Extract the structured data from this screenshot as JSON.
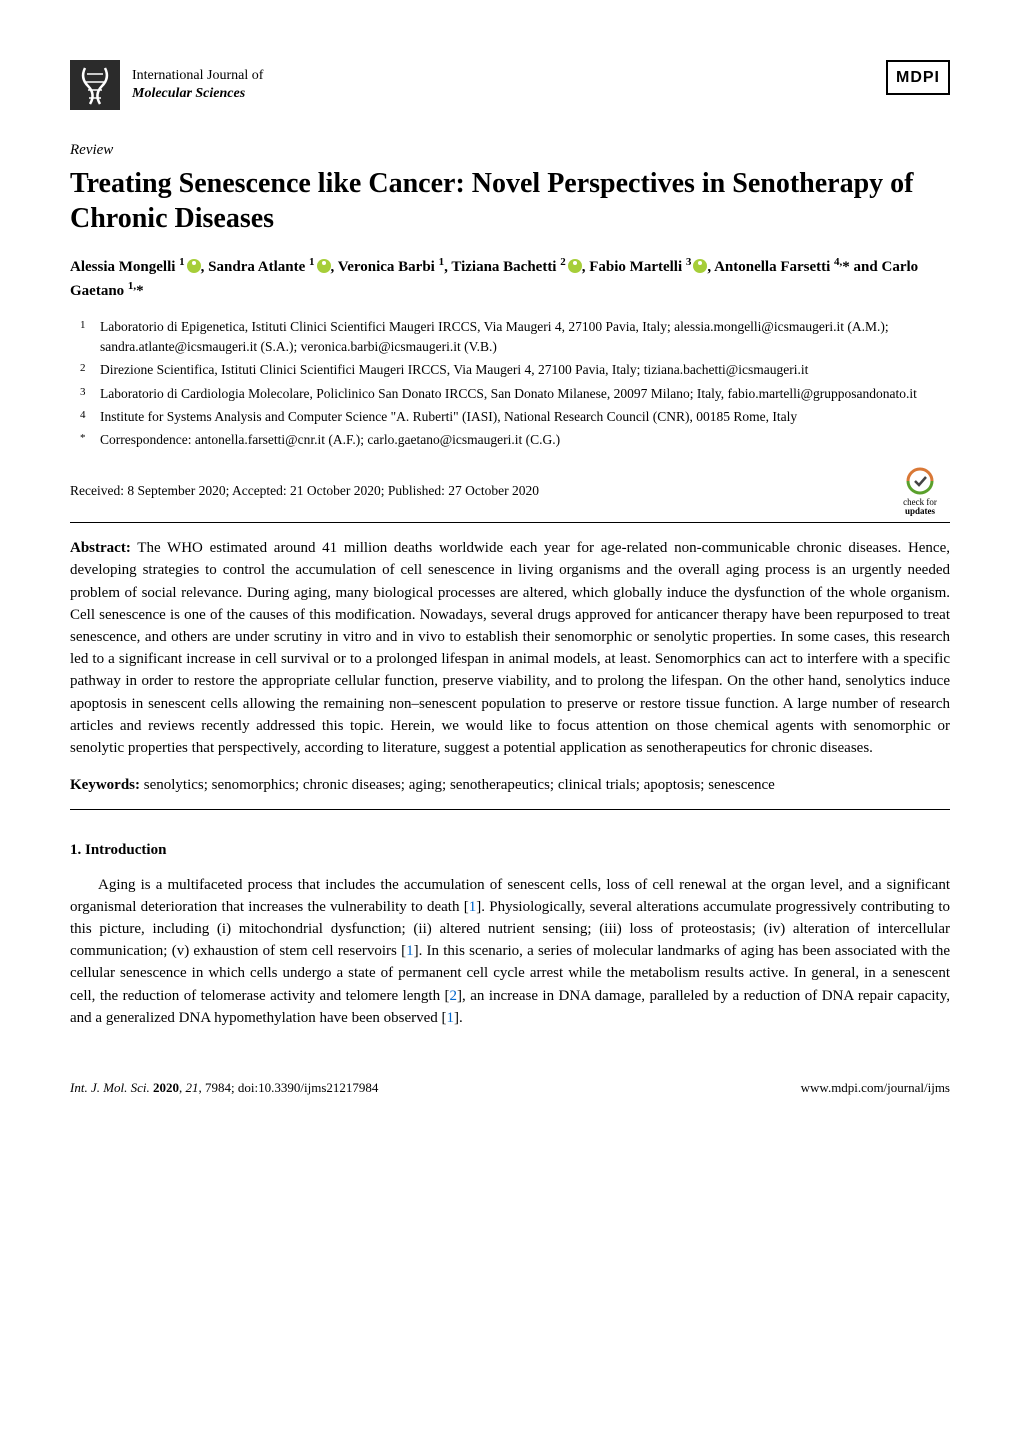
{
  "journal": {
    "line1": "International Journal of",
    "line2": "Molecular Sciences"
  },
  "publisher": "MDPI",
  "article_type": "Review",
  "title": "Treating Senescence like Cancer: Novel Perspectives in Senotherapy of Chronic Diseases",
  "authors_html": "Alessia Mongelli <sup>1</sup><span class=\"orcid\" data-name=\"orcid-icon\" data-interactable=\"false\"></span>, Sandra Atlante <sup>1</sup><span class=\"orcid\" data-name=\"orcid-icon\" data-interactable=\"false\"></span>, Veronica Barbi <sup>1</sup>, Tiziana Bachetti <sup>2</sup><span class=\"orcid\" data-name=\"orcid-icon\" data-interactable=\"false\"></span>, Fabio Martelli <sup>3</sup><span class=\"orcid\" data-name=\"orcid-icon\" data-interactable=\"false\"></span>, Antonella Farsetti <sup>4,</sup>* and Carlo Gaetano <sup>1,</sup>*",
  "affiliations": [
    {
      "num": "1",
      "text": "Laboratorio di Epigenetica, Istituti Clinici Scientifici Maugeri IRCCS, Via Maugeri 4, 27100 Pavia, Italy; alessia.mongelli@icsmaugeri.it (A.M.); sandra.atlante@icsmaugeri.it (S.A.); veronica.barbi@icsmaugeri.it (V.B.)"
    },
    {
      "num": "2",
      "text": "Direzione Scientifica, Istituti Clinici Scientifici Maugeri IRCCS, Via Maugeri 4, 27100 Pavia, Italy; tiziana.bachetti@icsmaugeri.it"
    },
    {
      "num": "3",
      "text": "Laboratorio di Cardiologia Molecolare, Policlinico San Donato IRCCS, San Donato Milanese, 20097 Milano; Italy, fabio.martelli@grupposandonato.it"
    },
    {
      "num": "4",
      "text": "Institute for Systems Analysis and Computer Science \"A. Ruberti\" (IASI), National Research Council (CNR), 00185 Rome, Italy"
    },
    {
      "num": "*",
      "text": "Correspondence: antonella.farsetti@cnr.it (A.F.); carlo.gaetano@icsmaugeri.it (C.G.)"
    }
  ],
  "dates": "Received: 8 September 2020; Accepted: 21 October 2020; Published: 27 October 2020",
  "updates_badge": {
    "line1": "check for",
    "line2": "updates"
  },
  "abstract_label": "Abstract:",
  "abstract": " The WHO estimated around 41 million deaths worldwide each year for age-related non-communicable chronic diseases. Hence, developing strategies to control the accumulation of cell senescence in living organisms and the overall aging process is an urgently needed problem of social relevance. During aging, many biological processes are altered, which globally induce the dysfunction of the whole organism. Cell senescence is one of the causes of this modification. Nowadays, several drugs approved for anticancer therapy have been repurposed to treat senescence, and others are under scrutiny in vitro and in vivo to establish their senomorphic or senolytic properties. In some cases, this research led to a significant increase in cell survival or to a prolonged lifespan in animal models, at least. Senomorphics can act to interfere with a specific pathway in order to restore the appropriate cellular function, preserve viability, and to prolong the lifespan. On the other hand, senolytics induce apoptosis in senescent cells allowing the remaining non–senescent population to preserve or restore tissue function. A large number of research articles and reviews recently addressed this topic. Herein, we would like to focus attention on those chemical agents with senomorphic or senolytic properties that perspectively, according to literature, suggest a potential application as senotherapeutics for chronic diseases.",
  "keywords_label": "Keywords:",
  "keywords": " senolytics; senomorphics; chronic diseases; aging; senotherapeutics; clinical trials; apoptosis; senescence",
  "section1_heading": "1. Introduction",
  "intro_paragraph_html": "Aging is a multifaceted process that includes the accumulation of senescent cells, loss of cell renewal at the organ level, and a significant organismal deterioration that increases the vulnerability to death [<span class=\"ref-link\" data-name=\"ref-link\" data-interactable=\"true\">1</span>]. Physiologically, several alterations accumulate progressively contributing to this picture, including (i) mitochondrial dysfunction; (ii) altered nutrient sensing; (iii) loss of proteostasis; (iv) alteration of intercellular communication; (v) exhaustion of stem cell reservoirs [<span class=\"ref-link\" data-name=\"ref-link\" data-interactable=\"true\">1</span>]. In this scenario, a series of molecular landmarks of aging has been associated with the cellular senescence in which cells undergo a state of permanent cell cycle arrest while the metabolism results active. In general, in a senescent cell, the reduction of telomerase activity and telomere length [<span class=\"ref-link\" data-name=\"ref-link\" data-interactable=\"true\">2</span>], an increase in DNA damage, paralleled by a reduction of DNA repair capacity, and a generalized DNA hypomethylation have been observed [<span class=\"ref-link\" data-name=\"ref-link\" data-interactable=\"true\">1</span>].",
  "footer": {
    "left_html": "<i>Int. J. Mol. Sci.</i> <b>2020</b>, <i>21</i>, 7984; doi:10.3390/ijms21217984",
    "right": "www.mdpi.com/journal/ijms"
  },
  "colors": {
    "text": "#000000",
    "background": "#ffffff",
    "orcid": "#a6ce39",
    "link": "#0066cc",
    "badge_arrow": "#d97836",
    "badge_check": "#5aa02c"
  }
}
